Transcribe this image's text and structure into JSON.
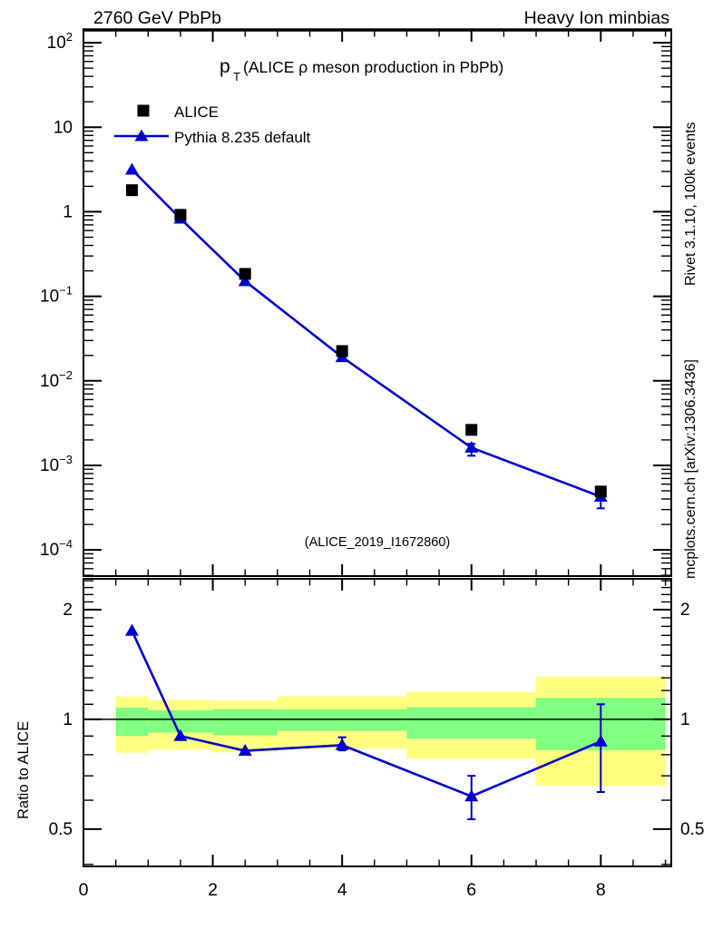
{
  "header": {
    "left": "2760 GeV PbPb",
    "right": "Heavy Ion minbias"
  },
  "main_title": {
    "p": "p",
    "sub": "T",
    "rest": "(ALICE ρ meson production in PbPb)"
  },
  "legend": [
    {
      "label": "ALICE",
      "marker": "square",
      "color": "#000000"
    },
    {
      "label": "Pythia 8.235 default",
      "marker": "triangle-line",
      "color": "#0000cd"
    }
  ],
  "watermark": "(ALICE_2019_I1672860)",
  "side_notes": {
    "top": "Rivet 3.1.10,  100k events",
    "bottom": "mcplots.cern.ch [arXiv:1306.3436]"
  },
  "ratio_ylabel": "Ratio to ALICE",
  "colors": {
    "line_blue": "#0000cd",
    "band_yellow": "#ffff80",
    "band_green": "#80ff80",
    "gray_text": "#8c8c8c",
    "watermark_gray": "#a6a6a6"
  },
  "chart_data": [
    {
      "type": "line",
      "title": "pT (ALICE ρ meson production in PbPb)",
      "xlabel": "",
      "ylabel": "",
      "yscale": "log",
      "xlim": [
        0,
        9.09
      ],
      "ylim": [
        4.9e-05,
        141.6
      ],
      "x": [
        0.75,
        1.5,
        2.5,
        4,
        6,
        8
      ],
      "series": [
        {
          "name": "ALICE",
          "marker": "square",
          "color": "#000000",
          "line": false,
          "values": [
            1.8,
            0.92,
            0.184,
            0.0225,
            0.00263,
            0.00049
          ]
        },
        {
          "name": "Pythia 8.235 default",
          "marker": "triangle",
          "color": "#0000cd",
          "line": true,
          "values": [
            3.15,
            0.83,
            0.151,
            0.0191,
            0.00162,
            0.000426
          ],
          "yerr_lo": [
            null,
            null,
            null,
            null,
            0.0013,
            0.00031
          ],
          "yerr_hi": [
            null,
            null,
            null,
            null,
            0.0018,
            0.00051
          ]
        }
      ],
      "ytick_labels": [
        {
          "value": 100,
          "base": "10",
          "sup": "2"
        },
        {
          "value": 10,
          "base": "10",
          "sup": ""
        },
        {
          "value": 1,
          "base": "1",
          "sup": ""
        },
        {
          "value": 0.1,
          "base": "10",
          "sup": "−1"
        },
        {
          "value": 0.01,
          "base": "10",
          "sup": "−2"
        },
        {
          "value": 0.001,
          "base": "10",
          "sup": "−3"
        },
        {
          "value": 0.0001,
          "base": "10",
          "sup": "−4"
        }
      ],
      "xticks": [
        0,
        2,
        4,
        6,
        8
      ],
      "grid": false,
      "legend_position": "upper-left-inside"
    },
    {
      "type": "ratio",
      "ylabel": "Ratio to ALICE",
      "yscale": "log",
      "xlim": [
        0,
        9.09
      ],
      "ylim": [
        0.395,
        2.43
      ],
      "x": [
        0.75,
        1.5,
        2.5,
        4,
        6,
        8
      ],
      "values": [
        1.75,
        0.9,
        0.82,
        0.85,
        0.615,
        0.87
      ],
      "yerr_lo": [
        null,
        null,
        null,
        0.822,
        0.532,
        0.632
      ],
      "yerr_hi": [
        null,
        null,
        null,
        0.893,
        0.7,
        1.1
      ],
      "reference_line": 1,
      "bands": {
        "edges": [
          0.5,
          1,
          2,
          3,
          5,
          7,
          9
        ],
        "yellow": [
          [
            0.81,
            1.155
          ],
          [
            0.825,
            1.13
          ],
          [
            0.812,
            1.124
          ],
          [
            0.83,
            1.156
          ],
          [
            0.78,
            1.19
          ],
          [
            0.658,
            1.31
          ]
        ],
        "green": [
          [
            0.9,
            1.077
          ],
          [
            0.92,
            1.06
          ],
          [
            0.904,
            1.067
          ],
          [
            0.93,
            1.065
          ],
          [
            0.885,
            1.08
          ],
          [
            0.824,
            1.145
          ]
        ]
      },
      "yticks": [
        2,
        1,
        0.5
      ],
      "ytick_labels": [
        "2",
        "1",
        "0.5"
      ],
      "xticks": [
        0,
        2,
        4,
        6,
        8
      ],
      "xtick_labels": [
        "0",
        "2",
        "4",
        "6",
        "8"
      ]
    }
  ]
}
